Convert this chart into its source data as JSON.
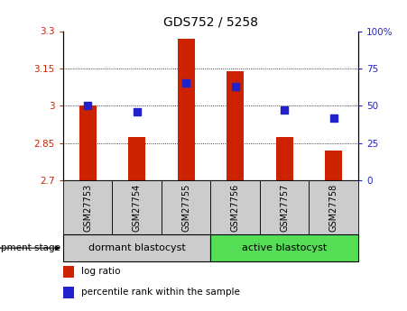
{
  "title": "GDS752 / 5258",
  "samples": [
    "GSM27753",
    "GSM27754",
    "GSM27755",
    "GSM27756",
    "GSM27757",
    "GSM27758"
  ],
  "log_ratio": [
    3.0,
    2.875,
    3.27,
    3.14,
    2.875,
    2.82
  ],
  "percentile_rank": [
    50,
    46,
    65,
    63,
    47,
    42
  ],
  "ylim_left": [
    2.7,
    3.3
  ],
  "ylim_right": [
    0,
    100
  ],
  "yticks_left": [
    2.7,
    2.85,
    3.0,
    3.15,
    3.3
  ],
  "yticks_right": [
    0,
    25,
    50,
    75,
    100
  ],
  "ytick_labels_left": [
    "2.7",
    "2.85",
    "3",
    "3.15",
    "3.3"
  ],
  "ytick_labels_right": [
    "0",
    "25",
    "50",
    "75",
    "100%"
  ],
  "gridlines": [
    2.85,
    3.0,
    3.15
  ],
  "base_value": 2.7,
  "bar_color": "#cc2200",
  "dot_color": "#2222cc",
  "group1_label": "dormant blastocyst",
  "group2_label": "active blastocyst",
  "group1_samples": 3,
  "group2_samples": 3,
  "sample_box_color": "#cccccc",
  "group1_color": "#cccccc",
  "group2_color": "#55dd55",
  "stage_label": "development stage",
  "legend_bar_label": "log ratio",
  "legend_dot_label": "percentile rank within the sample",
  "bar_width": 0.35,
  "dot_size": 35,
  "title_fontsize": 10,
  "tick_fontsize": 7.5,
  "sample_fontsize": 7,
  "label_fontsize": 7.5,
  "group_label_fontsize": 8
}
